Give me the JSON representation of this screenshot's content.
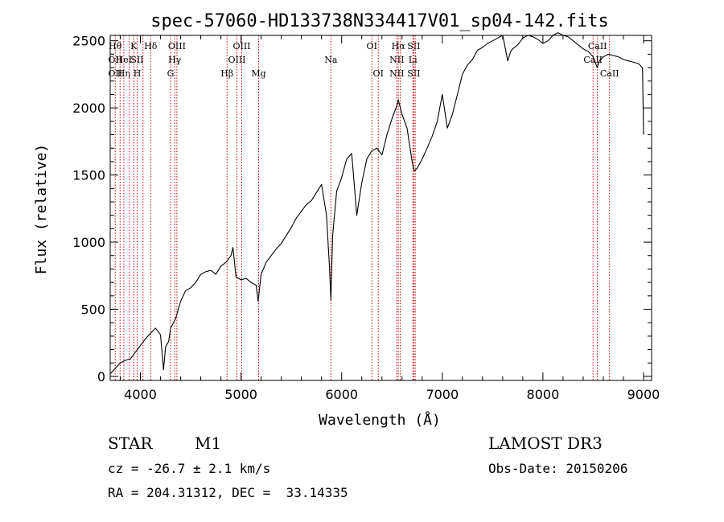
{
  "chart_data": {
    "type": "line",
    "title": "spec-57060-HD133738N334417V01_sp04-142.fits",
    "xlabel": "Wavelength (Å)",
    "ylabel": "Flux (relative)",
    "xlim": [
      3700,
      9080
    ],
    "ylim": [
      -30,
      2540
    ],
    "xticks": [
      4000,
      5000,
      6000,
      7000,
      8000,
      9000
    ],
    "yticks": [
      0,
      500,
      1000,
      1500,
      2000,
      2500
    ],
    "grid": false,
    "line_color": "#000000",
    "marker_color": "#cc0000",
    "series": [
      {
        "name": "flux",
        "x": [
          3700,
          3750,
          3800,
          3850,
          3900,
          3950,
          4000,
          4050,
          4100,
          4150,
          4200,
          4230,
          4250,
          4280,
          4300,
          4350,
          4400,
          4450,
          4500,
          4550,
          4600,
          4650,
          4700,
          4750,
          4800,
          4850,
          4900,
          4920,
          4950,
          5000,
          5050,
          5100,
          5150,
          5170,
          5200,
          5250,
          5300,
          5350,
          5400,
          5450,
          5500,
          5550,
          5600,
          5650,
          5700,
          5750,
          5800,
          5850,
          5880,
          5893,
          5910,
          5950,
          6000,
          6050,
          6100,
          6150,
          6200,
          6250,
          6300,
          6350,
          6400,
          6450,
          6500,
          6550,
          6563,
          6600,
          6650,
          6700,
          6720,
          6750,
          6800,
          6850,
          6900,
          6950,
          7000,
          7050,
          7100,
          7150,
          7200,
          7250,
          7300,
          7350,
          7400,
          7450,
          7500,
          7550,
          7600,
          7630,
          7650,
          7680,
          7700,
          7750,
          7800,
          7850,
          7900,
          7950,
          8000,
          8050,
          8100,
          8150,
          8200,
          8250,
          8300,
          8350,
          8400,
          8450,
          8500,
          8540,
          8560,
          8600,
          8650,
          8700,
          8750,
          8800,
          8850,
          8900,
          8950,
          8990,
          9000
        ],
        "values": [
          20,
          60,
          100,
          120,
          130,
          180,
          230,
          280,
          320,
          360,
          310,
          50,
          220,
          260,
          360,
          430,
          560,
          640,
          660,
          700,
          760,
          780,
          790,
          760,
          820,
          850,
          900,
          960,
          740,
          720,
          730,
          700,
          680,
          560,
          760,
          850,
          900,
          950,
          990,
          1050,
          1110,
          1180,
          1230,
          1280,
          1310,
          1370,
          1430,
          1200,
          800,
          570,
          1050,
          1380,
          1480,
          1620,
          1660,
          1200,
          1440,
          1620,
          1680,
          1700,
          1650,
          1800,
          1920,
          2020,
          2060,
          1950,
          1850,
          1600,
          1530,
          1550,
          1620,
          1700,
          1790,
          1900,
          2100,
          1850,
          1950,
          2100,
          2250,
          2320,
          2360,
          2430,
          2450,
          2480,
          2500,
          2520,
          2540,
          2430,
          2350,
          2420,
          2440,
          2470,
          2520,
          2540,
          2530,
          2510,
          2480,
          2500,
          2540,
          2560,
          2540,
          2530,
          2500,
          2470,
          2440,
          2420,
          2380,
          2300,
          2350,
          2380,
          2400,
          2390,
          2380,
          2360,
          2350,
          2340,
          2330,
          2300,
          1800
        ]
      }
    ],
    "lines": [
      {
        "wl": 3750,
        "labels": [
          "Hθ",
          "OII",
          "OII"
        ]
      },
      {
        "wl": 3798,
        "labels": [
          "",
          "",
          ""
        ]
      },
      {
        "wl": 3835,
        "labels": [
          "",
          "HeI",
          "Hη"
        ]
      },
      {
        "wl": 3889,
        "labels": [
          "",
          "",
          ""
        ]
      },
      {
        "wl": 3934,
        "labels": [
          "K",
          "",
          ""
        ]
      },
      {
        "wl": 3968,
        "labels": [
          "",
          "SII",
          "H"
        ]
      },
      {
        "wl": 4026,
        "labels": [
          "",
          "",
          ""
        ]
      },
      {
        "wl": 4102,
        "labels": [
          "Hδ",
          "",
          ""
        ]
      },
      {
        "wl": 4300,
        "labels": [
          "",
          "",
          "G"
        ]
      },
      {
        "wl": 4341,
        "labels": [
          "",
          "Hγ",
          ""
        ]
      },
      {
        "wl": 4363,
        "labels": [
          "OIII",
          "",
          ""
        ]
      },
      {
        "wl": 4861,
        "labels": [
          "",
          "",
          "Hβ"
        ]
      },
      {
        "wl": 4959,
        "labels": [
          "",
          "OIII",
          ""
        ]
      },
      {
        "wl": 5007,
        "labels": [
          "OIII",
          "",
          ""
        ]
      },
      {
        "wl": 5175,
        "labels": [
          "",
          "",
          "Mg"
        ]
      },
      {
        "wl": 5893,
        "labels": [
          "",
          "Na",
          ""
        ]
      },
      {
        "wl": 6300,
        "labels": [
          "OI",
          "",
          ""
        ]
      },
      {
        "wl": 6364,
        "labels": [
          "",
          "",
          "OI"
        ]
      },
      {
        "wl": 6548,
        "labels": [
          "",
          "NII",
          "NII"
        ]
      },
      {
        "wl": 6563,
        "labels": [
          "Hα",
          "",
          ""
        ]
      },
      {
        "wl": 6583,
        "labels": [
          "",
          "",
          ""
        ]
      },
      {
        "wl": 6708,
        "labels": [
          "",
          "Li",
          ""
        ]
      },
      {
        "wl": 6717,
        "labels": [
          "SII",
          "",
          "SII"
        ]
      },
      {
        "wl": 6731,
        "labels": [
          "",
          "",
          ""
        ]
      },
      {
        "wl": 8498,
        "labels": [
          "",
          "CaII",
          ""
        ]
      },
      {
        "wl": 8542,
        "labels": [
          "CaII",
          "",
          ""
        ]
      },
      {
        "wl": 8662,
        "labels": [
          "",
          "",
          "CaII"
        ]
      }
    ]
  },
  "footer": {
    "object_class": "STAR",
    "subclass": "M1",
    "survey": "LAMOST DR3",
    "redshift_text": "cz = -26.7 ± 2.1 km/s",
    "obs_date_text": "Obs-Date: 20150206",
    "coords_text": "RA = 204.31312, DEC =  33.14335"
  }
}
